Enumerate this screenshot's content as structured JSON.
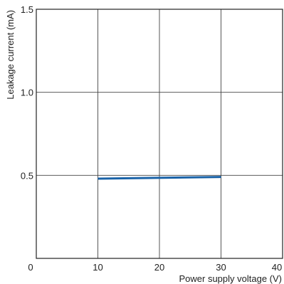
{
  "chart_data": {
    "type": "line",
    "xlabel": "Power supply voltage (V)",
    "ylabel": "Leakage current (mA)",
    "xlim": [
      0,
      40
    ],
    "ylim": [
      0,
      1.5
    ],
    "xticks": [
      0,
      10,
      20,
      30,
      40
    ],
    "xtick_labels": [
      "0",
      "10",
      "20",
      "30",
      "40"
    ],
    "yticks": [
      0.5,
      1.0,
      1.5
    ],
    "ytick_labels": [
      "0.5",
      "1.0",
      "1.5"
    ],
    "grid": true,
    "series": [
      {
        "x": [
          10,
          30
        ],
        "y": [
          0.48,
          0.49
        ],
        "color": "#1a63a8"
      }
    ]
  }
}
